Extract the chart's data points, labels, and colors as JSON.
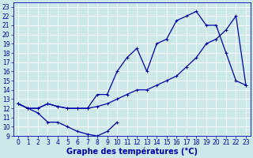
{
  "title": "Graphe des températures (°C)",
  "background_color": "#cce8e8",
  "line_color": "#0000aa",
  "grid_color": "#ffffff",
  "xlim": [
    -0.5,
    23.5
  ],
  "ylim": [
    9,
    23.5
  ],
  "xticks": [
    0,
    1,
    2,
    3,
    4,
    5,
    6,
    7,
    8,
    9,
    10,
    11,
    12,
    13,
    14,
    15,
    16,
    17,
    18,
    19,
    20,
    21,
    22,
    23
  ],
  "yticks": [
    9,
    10,
    11,
    12,
    13,
    14,
    15,
    16,
    17,
    18,
    19,
    20,
    21,
    22,
    23
  ],
  "series1_x": [
    0,
    1,
    2,
    3,
    4,
    5,
    6,
    7,
    8,
    9,
    10
  ],
  "series1_y": [
    12.5,
    12.0,
    11.5,
    10.5,
    10.5,
    10.0,
    9.5,
    9.2,
    9.0,
    9.5,
    10.5
  ],
  "series2_x": [
    0,
    1,
    2,
    3,
    4,
    5,
    6,
    7,
    8,
    9,
    10,
    11,
    12,
    13,
    14,
    15,
    16,
    17,
    18,
    19,
    20,
    21,
    22,
    23
  ],
  "series2_y": [
    12.5,
    12.0,
    12.0,
    12.5,
    12.2,
    12.0,
    12.0,
    12.0,
    13.5,
    13.5,
    16.0,
    17.5,
    18.5,
    16.0,
    19.0,
    19.5,
    21.5,
    22.0,
    22.5,
    21.0,
    21.0,
    18.0,
    15.0,
    14.5
  ],
  "series3_x": [
    0,
    1,
    2,
    3,
    4,
    5,
    6,
    7,
    8,
    9,
    10,
    11,
    12,
    13,
    14,
    15,
    16,
    17,
    18,
    19,
    20,
    21,
    22,
    23
  ],
  "series3_y": [
    12.5,
    12.0,
    12.0,
    12.5,
    12.2,
    12.0,
    12.0,
    12.0,
    12.2,
    12.5,
    13.0,
    13.5,
    14.0,
    14.0,
    14.5,
    15.0,
    15.5,
    16.5,
    17.5,
    19.0,
    19.5,
    20.5,
    22.0,
    14.5
  ],
  "marker_size": 3,
  "line_width": 0.9,
  "xlabel_fontsize": 7,
  "tick_fontsize": 5.5
}
